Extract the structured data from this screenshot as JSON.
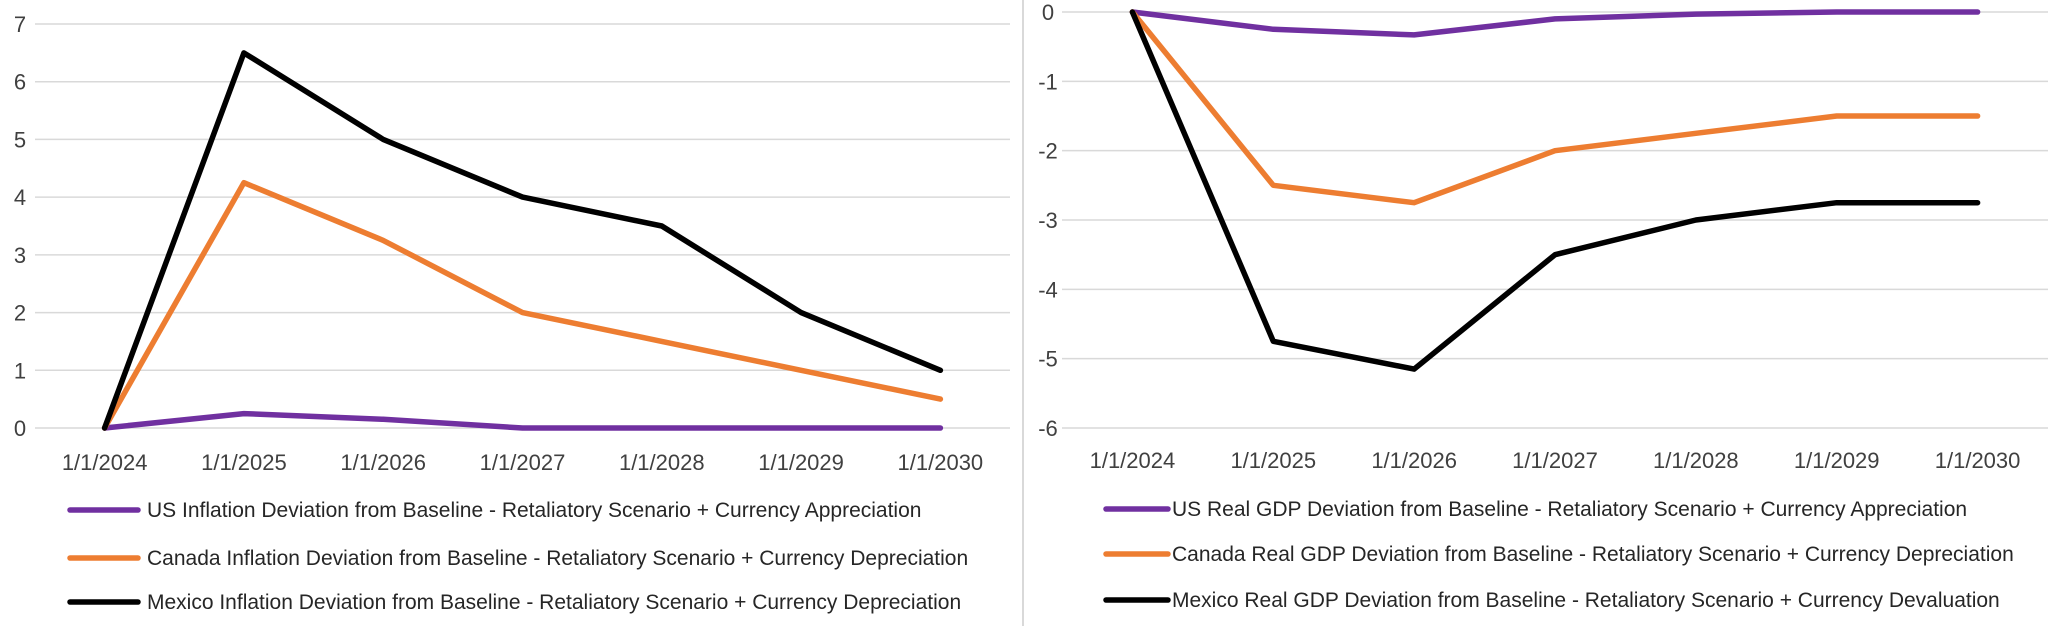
{
  "chart_data": [
    {
      "type": "line",
      "categories": [
        "1/1/2024",
        "1/1/2025",
        "1/1/2026",
        "1/1/2027",
        "1/1/2028",
        "1/1/2029",
        "1/1/2030"
      ],
      "ylim": [
        0,
        7
      ],
      "yticks": [
        0,
        1,
        2,
        3,
        4,
        5,
        6,
        7
      ],
      "grid": true,
      "legend_position": "bottom",
      "series": [
        {
          "name": "US Inflation Deviation from Baseline - Retaliatory Scenario + Currency Appreciation",
          "color": "#7030A0",
          "values": [
            0,
            0.25,
            0.15,
            0,
            0,
            0,
            0
          ]
        },
        {
          "name": "Canada Inflation Deviation from Baseline - Retaliatory Scenario + Currency Depreciation",
          "color": "#ED7D31",
          "values": [
            0,
            4.25,
            3.25,
            2,
            1.5,
            1,
            0.5
          ]
        },
        {
          "name": "Mexico Inflation Deviation from Baseline - Retaliatory Scenario + Currency Depreciation",
          "color": "#000000",
          "values": [
            0,
            6.5,
            5,
            4,
            3.5,
            2,
            1
          ]
        }
      ]
    },
    {
      "type": "line",
      "categories": [
        "1/1/2024",
        "1/1/2025",
        "1/1/2026",
        "1/1/2027",
        "1/1/2028",
        "1/1/2029",
        "1/1/2030"
      ],
      "ylim": [
        -6,
        0
      ],
      "yticks": [
        0,
        -1,
        -2,
        -3,
        -4,
        -5,
        -6
      ],
      "grid": true,
      "legend_position": "bottom",
      "series": [
        {
          "name": "US Real GDP Deviation from Baseline - Retaliatory Scenario + Currency Appreciation",
          "color": "#7030A0",
          "values": [
            0,
            -0.25,
            -0.33,
            -0.1,
            -0.03,
            0,
            0
          ]
        },
        {
          "name": "Canada Real GDP Deviation from Baseline - Retaliatory Scenario + Currency Depreciation",
          "color": "#ED7D31",
          "values": [
            0,
            -2.5,
            -2.75,
            -2,
            -1.75,
            -1.5,
            -1.5
          ]
        },
        {
          "name": "Mexico Real GDP Deviation from Baseline - Retaliatory Scenario + Currency Devaluation",
          "color": "#000000",
          "values": [
            0,
            -4.75,
            -5.15,
            -3.5,
            -3,
            -2.75,
            -2.75
          ]
        }
      ]
    }
  ]
}
